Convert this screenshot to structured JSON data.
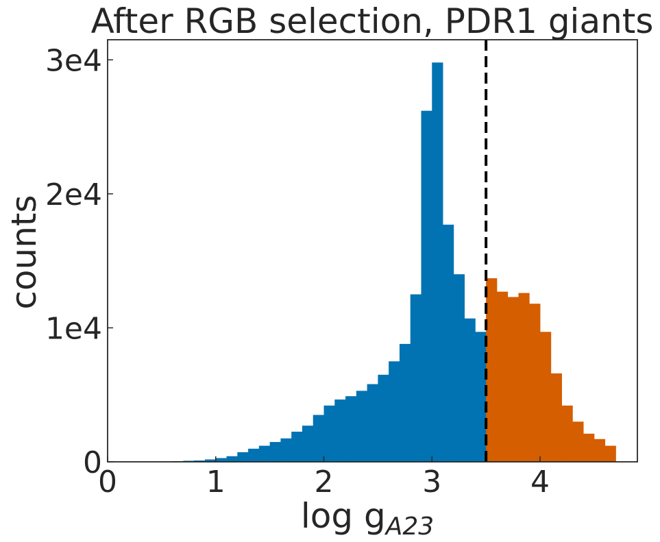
{
  "chart_data": {
    "type": "bar",
    "title": "After RGB selection, PDR1 giants",
    "xlabel_main": "log g",
    "xlabel_sub": "A23",
    "ylabel": "counts",
    "xlim": [
      0,
      4.9
    ],
    "ylim": [
      0,
      31500
    ],
    "bin_width": 0.1,
    "xticks": [
      {
        "value": 0,
        "label": "0"
      },
      {
        "value": 1,
        "label": "1"
      },
      {
        "value": 2,
        "label": "2"
      },
      {
        "value": 3,
        "label": "3"
      },
      {
        "value": 4,
        "label": "4"
      }
    ],
    "yticks": [
      {
        "value": 0,
        "label": "0"
      },
      {
        "value": 10000,
        "label": "1e4"
      },
      {
        "value": 20000,
        "label": "2e4"
      },
      {
        "value": 30000,
        "label": "3e4"
      }
    ],
    "threshold": 3.5,
    "colors": {
      "below": "#0173b2",
      "above": "#d55e00",
      "threshold_line": "#000000",
      "axes": "#262626"
    },
    "series": [
      {
        "bin_starts": [
          0.5,
          0.6,
          0.7,
          0.8,
          0.9,
          1.0,
          1.1,
          1.2,
          1.3,
          1.4,
          1.5,
          1.6,
          1.7,
          1.8,
          1.9,
          2.0,
          2.1,
          2.2,
          2.3,
          2.4,
          2.5,
          2.6,
          2.7,
          2.8,
          2.9,
          3.0,
          3.1,
          3.2,
          3.3,
          3.4
        ],
        "values": [
          30,
          50,
          80,
          100,
          180,
          280,
          420,
          720,
          980,
          1200,
          1480,
          1750,
          2250,
          2700,
          3500,
          4200,
          4650,
          4900,
          5300,
          5800,
          6500,
          7500,
          8800,
          12500,
          26200,
          29800,
          17700,
          14000,
          10700,
          9700
        ]
      },
      {
        "bin_starts": [
          3.5,
          3.6,
          3.7,
          3.8,
          3.9,
          4.0,
          4.1,
          4.2,
          4.3,
          4.4,
          4.5,
          4.6
        ],
        "values": [
          13700,
          12700,
          12300,
          12600,
          11800,
          9700,
          6600,
          4200,
          3000,
          2100,
          1700,
          1200
        ]
      }
    ]
  }
}
